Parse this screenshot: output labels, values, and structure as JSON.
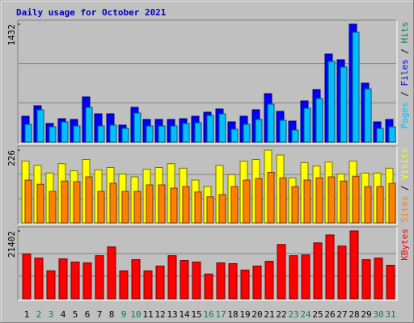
{
  "chart_data": [
    {
      "type": "bar",
      "title": "Daily usage for October 2021",
      "ylim": [
        0,
        1432
      ],
      "yticks": [
        1432
      ],
      "series": [
        {
          "name": "Hits",
          "color": "#00805c",
          "values": [
            314,
            441,
            226,
            284,
            275,
            549,
            343,
            343,
            206,
            422,
            275,
            275,
            275,
            284,
            314,
            363,
            402,
            245,
            314,
            392,
            588,
            373,
            255,
            500,
            638,
            1069,
            1000,
            1432,
            716,
            245,
            275
          ]
        },
        {
          "name": "Files",
          "color": "#0000ff",
          "values": [
            314,
            441,
            226,
            284,
            275,
            549,
            343,
            343,
            206,
            422,
            275,
            275,
            275,
            284,
            314,
            363,
            402,
            245,
            314,
            392,
            588,
            373,
            255,
            500,
            638,
            1069,
            1000,
            1432,
            716,
            245,
            275
          ]
        },
        {
          "name": "Pages",
          "color": "#00c0ff",
          "values": [
            216,
            392,
            186,
            245,
            196,
            422,
            196,
            206,
            167,
            353,
            196,
            196,
            196,
            226,
            235,
            324,
            343,
            157,
            216,
            275,
            461,
            265,
            147,
            412,
            530,
            981,
            912,
            1334,
            647,
            167,
            186
          ]
        }
      ]
    },
    {
      "type": "bar",
      "ylim": [
        0,
        226
      ],
      "yticks": [
        226
      ],
      "series": [
        {
          "name": "Visits",
          "color": "#ffff00",
          "values": [
            192,
            179,
            155,
            184,
            162,
            197,
            165,
            172,
            152,
            143,
            167,
            172,
            184,
            170,
            133,
            113,
            179,
            150,
            192,
            197,
            226,
            211,
            140,
            187,
            177,
            189,
            152,
            192,
            155,
            155,
            170
          ]
        },
        {
          "name": "Sites",
          "color": "#ff8000",
          "values": [
            133,
            120,
            98,
            130,
            128,
            143,
            98,
            123,
            98,
            98,
            118,
            118,
            108,
            113,
            96,
            81,
            88,
            113,
            133,
            138,
            157,
            140,
            113,
            133,
            140,
            143,
            130,
            145,
            113,
            113,
            123
          ]
        }
      ]
    },
    {
      "type": "bar",
      "ylim": [
        0,
        21402
      ],
      "yticks": [
        21402
      ],
      "categories": [
        "1",
        "2",
        "3",
        "4",
        "5",
        "6",
        "7",
        "8",
        "9",
        "10",
        "11",
        "12",
        "13",
        "14",
        "15",
        "16",
        "17",
        "18",
        "19",
        "20",
        "21",
        "22",
        "23",
        "24",
        "25",
        "26",
        "27",
        "28",
        "29",
        "30",
        "31"
      ],
      "category_colors": [
        "#000000",
        "#00805c",
        "#00805c",
        "#000000",
        "#000000",
        "#000000",
        "#000000",
        "#000000",
        "#00805c",
        "#00805c",
        "#000000",
        "#000000",
        "#000000",
        "#000000",
        "#000000",
        "#00805c",
        "#00805c",
        "#000000",
        "#000000",
        "#000000",
        "#000000",
        "#000000",
        "#00805c",
        "#00805c",
        "#000000",
        "#000000",
        "#000000",
        "#000000",
        "#000000",
        "#00805c",
        "#00805c"
      ],
      "series": [
        {
          "name": "KBytes",
          "color": "#ff0000",
          "values": [
            14100,
            12840,
            8810,
            12590,
            11580,
            11330,
            13600,
            16370,
            8810,
            12340,
            8810,
            10320,
            13600,
            12090,
            11580,
            7810,
            11330,
            11080,
            9060,
            10320,
            11830,
            17120,
            13600,
            13850,
            17630,
            20140,
            16620,
            21402,
            12340,
            12840,
            10580
          ]
        }
      ]
    }
  ]
}
